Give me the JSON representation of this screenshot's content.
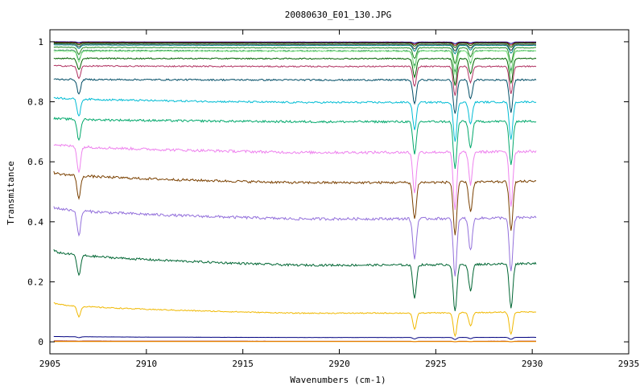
{
  "chart_data": {
    "type": "line",
    "title": "20080630_E01_130.JPG",
    "xlabel": "Wavenumbers (cm-1)",
    "ylabel": "Transmitance",
    "xlim": [
      2905,
      2935
    ],
    "ylim": [
      -0.04,
      1.04
    ],
    "x_ticks": [
      2905,
      2910,
      2915,
      2920,
      2925,
      2930,
      2935
    ],
    "x_tick_labels": [
      "2905",
      "2910",
      "2915",
      "2920",
      "2925",
      "2930",
      "2935"
    ],
    "y_ticks": [
      0,
      0.2,
      0.4,
      0.6,
      0.8,
      1
    ],
    "y_tick_labels": [
      "0",
      "0.2",
      "0.4",
      "0.6",
      "0.8",
      "1"
    ],
    "x_range_data": [
      2905.2,
      2930.2
    ],
    "grid": false,
    "legend": "none",
    "absorption_bands": [
      {
        "x": 2906.5,
        "relative_depth": 0.35
      },
      {
        "x": 2923.9,
        "relative_depth": 0.55
      },
      {
        "x": 2926.0,
        "relative_depth": 0.8
      },
      {
        "x": 2926.8,
        "relative_depth": 0.45
      },
      {
        "x": 2928.9,
        "relative_depth": 0.75
      }
    ],
    "series": [
      {
        "color": "#00008b",
        "start": 1.0,
        "end": 0.999,
        "dip": 0.003
      },
      {
        "color": "#8b0000",
        "start": 0.998,
        "end": 0.997,
        "dip": 0.005
      },
      {
        "color": "#006400",
        "start": 0.996,
        "end": 0.995,
        "dip": 0.008
      },
      {
        "color": "#444444",
        "start": 0.993,
        "end": 0.991,
        "dip": 0.012
      },
      {
        "color": "#008b8b",
        "start": 0.99,
        "end": 0.988,
        "dip": 0.016
      },
      {
        "color": "#228b22",
        "start": 0.982,
        "end": 0.98,
        "dip": 0.03
      },
      {
        "color": "#2e8b57",
        "start": 0.972,
        "end": 0.97,
        "dip": 0.04
      },
      {
        "color": "#90ee90",
        "start": 0.968,
        "end": 0.97,
        "dip": 0.045
      },
      {
        "color": "#006400",
        "start": 0.945,
        "end": 0.944,
        "dip": 0.05
      },
      {
        "color": "#b03060",
        "start": 0.92,
        "end": 0.918,
        "dip": 0.055
      },
      {
        "color": "#004d66",
        "start": 0.875,
        "end": 0.873,
        "dip": 0.065
      },
      {
        "color": "#00bcd4",
        "start": 0.815,
        "end": 0.8,
        "dip": 0.075
      },
      {
        "color": "#00a86b",
        "start": 0.745,
        "end": 0.735,
        "dip": 0.09
      },
      {
        "color": "#ee82ee",
        "start": 0.66,
        "end": 0.635,
        "dip": 0.11
      },
      {
        "color": "#7a4000",
        "start": 0.565,
        "end": 0.535,
        "dip": 0.1
      },
      {
        "color": "#9370db",
        "start": 0.45,
        "end": 0.415,
        "dip": 0.11
      },
      {
        "color": "#006633",
        "start": 0.305,
        "end": 0.262,
        "dip": 0.09
      },
      {
        "color": "#f0b800",
        "start": 0.13,
        "end": 0.1,
        "dip": 0.045
      },
      {
        "color": "#000080",
        "start": 0.018,
        "end": 0.015,
        "dip": 0.004
      },
      {
        "color": "#8b0000",
        "start": 0.003,
        "end": 0.002,
        "dip": 0.001
      },
      {
        "color": "#ffa500",
        "start": 0.001,
        "end": 0.001,
        "dip": 0.0
      }
    ]
  }
}
